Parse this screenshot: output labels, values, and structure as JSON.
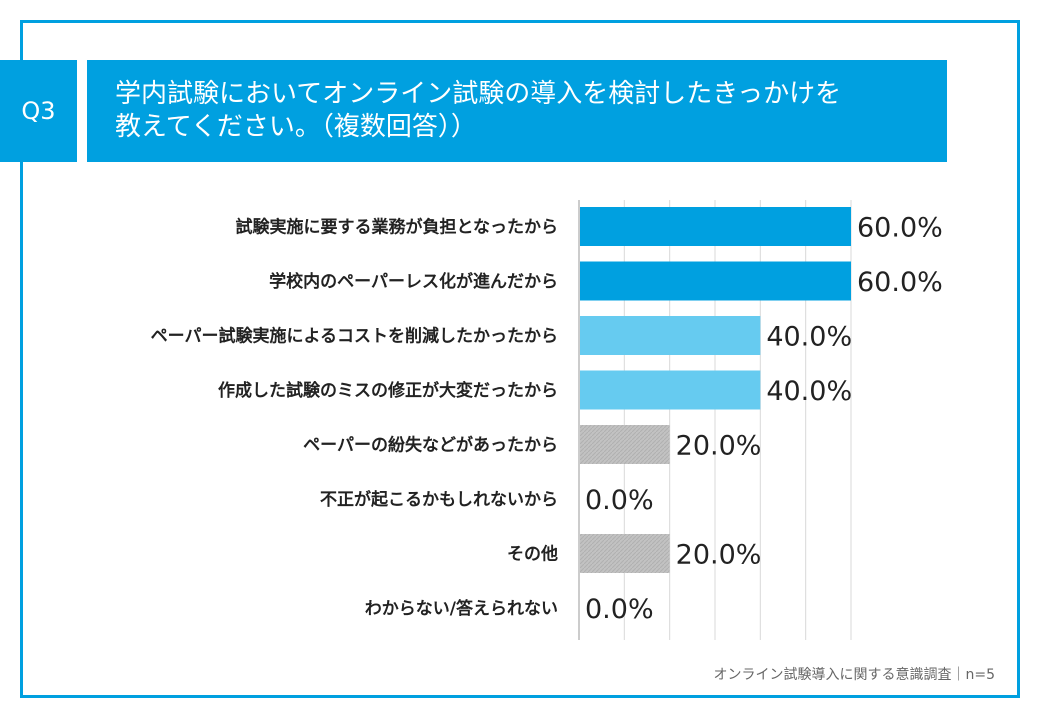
{
  "question": {
    "badge": "Q3",
    "title_line1": "学内試験においてオンライン試験の導入を検討したきっかけを",
    "title_line2": "教えてください。（複数回答））"
  },
  "footer": "オンライン試験導入に関する意識調査｜n=5",
  "colors": {
    "frame": "#00a0e0",
    "bar_high": "#00a0e0",
    "bar_mid": "#66cbf0",
    "bar_low": "#c2c2c2"
  },
  "chart_data": {
    "type": "bar",
    "orientation": "horizontal",
    "title": "学内試験においてオンライン試験の導入を検討したきっかけを教えてください。（複数回答））",
    "categories": [
      "試験実施に要する業務が負担となったから",
      "学校内のペーパーレス化が進んだから",
      "ペーパー試験実施によるコストを削減したかったから",
      "作成した試験のミスの修正が大変だったから",
      "ペーパーの紛失などがあったから",
      "不正が起こるかもしれないから",
      "その他",
      "わからない/答えられない"
    ],
    "values": [
      60.0,
      60.0,
      40.0,
      40.0,
      20.0,
      0.0,
      20.0,
      0.0
    ],
    "value_labels": [
      "60.0%",
      "60.0%",
      "40.0%",
      "40.0%",
      "20.0%",
      "0.0%",
      "20.0%",
      "0.0%"
    ],
    "xlim": [
      0,
      60
    ],
    "grid_step": 10,
    "grid": true,
    "unit": "%"
  }
}
